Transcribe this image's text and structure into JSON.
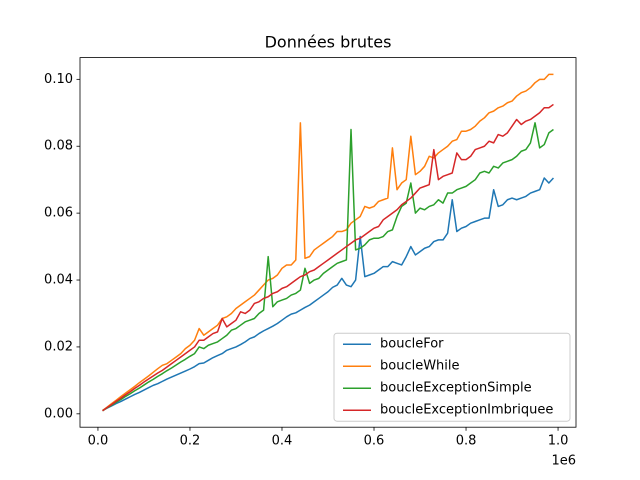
{
  "chart_data": {
    "type": "line",
    "title": "Données brutes",
    "x": [
      10000,
      20000,
      30000,
      40000,
      50000,
      60000,
      70000,
      80000,
      90000,
      100000,
      110000,
      120000,
      130000,
      140000,
      150000,
      160000,
      170000,
      180000,
      190000,
      200000,
      210000,
      220000,
      230000,
      240000,
      250000,
      260000,
      270000,
      280000,
      290000,
      300000,
      310000,
      320000,
      330000,
      340000,
      350000,
      360000,
      370000,
      380000,
      390000,
      400000,
      410000,
      420000,
      430000,
      440000,
      450000,
      460000,
      470000,
      480000,
      490000,
      500000,
      510000,
      520000,
      530000,
      540000,
      550000,
      560000,
      570000,
      580000,
      590000,
      600000,
      610000,
      620000,
      630000,
      640000,
      650000,
      660000,
      670000,
      680000,
      690000,
      700000,
      710000,
      720000,
      730000,
      740000,
      750000,
      760000,
      770000,
      780000,
      790000,
      800000,
      810000,
      820000,
      830000,
      840000,
      850000,
      860000,
      870000,
      880000,
      890000,
      900000,
      910000,
      920000,
      930000,
      940000,
      950000,
      960000,
      970000,
      980000,
      990000
    ],
    "x_offset_label": "1e6",
    "xlim": [
      -39000,
      1039000
    ],
    "xticks": [
      {
        "value": 0,
        "label": "0.0"
      },
      {
        "value": 200000,
        "label": "0.2"
      },
      {
        "value": 400000,
        "label": "0.4"
      },
      {
        "value": 600000,
        "label": "0.6"
      },
      {
        "value": 800000,
        "label": "0.8"
      },
      {
        "value": 1000000,
        "label": "1.0"
      }
    ],
    "ylim": [
      -0.004,
      0.1065
    ],
    "yticks": [
      {
        "value": 0,
        "label": "0.00"
      },
      {
        "value": 0.02,
        "label": "0.02"
      },
      {
        "value": 0.04,
        "label": "0.04"
      },
      {
        "value": 0.06,
        "label": "0.06"
      },
      {
        "value": 0.08,
        "label": "0.08"
      },
      {
        "value": 0.1,
        "label": "0.10"
      }
    ],
    "legend": "lower right",
    "series": [
      {
        "name": "boucleFor",
        "color": "#1f77b4",
        "values": [
          0.001,
          0.0017,
          0.0024,
          0.0031,
          0.0037,
          0.0044,
          0.0051,
          0.0058,
          0.0064,
          0.0071,
          0.0078,
          0.0085,
          0.009,
          0.0097,
          0.0104,
          0.011,
          0.0116,
          0.0122,
          0.0128,
          0.0134,
          0.0141,
          0.015,
          0.0152,
          0.016,
          0.0168,
          0.0174,
          0.018,
          0.019,
          0.0195,
          0.02,
          0.0207,
          0.0215,
          0.0225,
          0.023,
          0.024,
          0.0248,
          0.0255,
          0.0262,
          0.027,
          0.028,
          0.029,
          0.0298,
          0.0302,
          0.031,
          0.0318,
          0.0325,
          0.0335,
          0.0345,
          0.0355,
          0.0365,
          0.0378,
          0.0385,
          0.0405,
          0.0385,
          0.038,
          0.04,
          0.053,
          0.041,
          0.0415,
          0.042,
          0.043,
          0.044,
          0.044,
          0.0455,
          0.045,
          0.0445,
          0.047,
          0.05,
          0.0475,
          0.0485,
          0.0495,
          0.05,
          0.0515,
          0.052,
          0.052,
          0.054,
          0.064,
          0.0545,
          0.0555,
          0.056,
          0.057,
          0.0575,
          0.058,
          0.0585,
          0.0585,
          0.067,
          0.062,
          0.0625,
          0.064,
          0.0645,
          0.064,
          0.0645,
          0.065,
          0.066,
          0.0665,
          0.067,
          0.0705,
          0.069,
          0.0705
        ]
      },
      {
        "name": "boucleWhile",
        "color": "#ff7f0e",
        "values": [
          0.001,
          0.002,
          0.0031,
          0.0041,
          0.0052,
          0.0062,
          0.0072,
          0.0082,
          0.0093,
          0.0103,
          0.0113,
          0.0124,
          0.0135,
          0.0145,
          0.015,
          0.016,
          0.017,
          0.018,
          0.0195,
          0.0205,
          0.022,
          0.0255,
          0.0235,
          0.0245,
          0.0255,
          0.0265,
          0.0285,
          0.029,
          0.03,
          0.0315,
          0.0325,
          0.0335,
          0.0345,
          0.0355,
          0.037,
          0.0385,
          0.04,
          0.0405,
          0.0415,
          0.0435,
          0.0445,
          0.0445,
          0.046,
          0.087,
          0.0465,
          0.047,
          0.049,
          0.05,
          0.051,
          0.052,
          0.053,
          0.0545,
          0.0545,
          0.055,
          0.057,
          0.058,
          0.059,
          0.062,
          0.0615,
          0.062,
          0.0635,
          0.064,
          0.0645,
          0.0795,
          0.067,
          0.069,
          0.07,
          0.083,
          0.0715,
          0.0725,
          0.074,
          0.077,
          0.0765,
          0.078,
          0.079,
          0.08,
          0.0815,
          0.082,
          0.0845,
          0.0845,
          0.085,
          0.086,
          0.0875,
          0.0885,
          0.09,
          0.0905,
          0.0915,
          0.092,
          0.093,
          0.0935,
          0.095,
          0.096,
          0.0965,
          0.0975,
          0.099,
          0.1,
          0.1,
          0.1015,
          0.1015
        ]
      },
      {
        "name": "boucleExceptionSimple",
        "color": "#2ca02c",
        "values": [
          0.0009,
          0.0018,
          0.0026,
          0.0035,
          0.0043,
          0.0052,
          0.006,
          0.0069,
          0.0077,
          0.0086,
          0.0095,
          0.0103,
          0.0112,
          0.012,
          0.0129,
          0.0137,
          0.0146,
          0.0155,
          0.0163,
          0.0172,
          0.018,
          0.02,
          0.0195,
          0.0205,
          0.021,
          0.0215,
          0.0225,
          0.0235,
          0.025,
          0.0255,
          0.0265,
          0.0275,
          0.028,
          0.0285,
          0.03,
          0.031,
          0.047,
          0.032,
          0.0335,
          0.034,
          0.0345,
          0.0355,
          0.036,
          0.037,
          0.0435,
          0.039,
          0.04,
          0.0405,
          0.042,
          0.043,
          0.044,
          0.045,
          0.0455,
          0.046,
          0.085,
          0.049,
          0.0495,
          0.0505,
          0.052,
          0.0525,
          0.0525,
          0.053,
          0.0545,
          0.055,
          0.059,
          0.062,
          0.063,
          0.069,
          0.06,
          0.0615,
          0.061,
          0.062,
          0.0625,
          0.064,
          0.063,
          0.066,
          0.066,
          0.067,
          0.0675,
          0.068,
          0.069,
          0.07,
          0.072,
          0.0725,
          0.072,
          0.074,
          0.0735,
          0.075,
          0.0755,
          0.076,
          0.077,
          0.0785,
          0.079,
          0.081,
          0.087,
          0.0795,
          0.0805,
          0.084,
          0.085
        ]
      },
      {
        "name": "boucleExceptionImbriquee",
        "color": "#d62728",
        "values": [
          0.0009,
          0.0019,
          0.0028,
          0.0038,
          0.0047,
          0.0057,
          0.0066,
          0.0076,
          0.0085,
          0.0095,
          0.0104,
          0.0113,
          0.0122,
          0.013,
          0.014,
          0.015,
          0.016,
          0.017,
          0.018,
          0.019,
          0.02,
          0.022,
          0.022,
          0.023,
          0.024,
          0.0245,
          0.0285,
          0.026,
          0.027,
          0.028,
          0.0305,
          0.03,
          0.031,
          0.033,
          0.0335,
          0.0345,
          0.035,
          0.036,
          0.0365,
          0.0375,
          0.038,
          0.039,
          0.04,
          0.041,
          0.0415,
          0.0425,
          0.043,
          0.044,
          0.045,
          0.046,
          0.047,
          0.048,
          0.049,
          0.05,
          0.051,
          0.052,
          0.0525,
          0.0535,
          0.0545,
          0.0555,
          0.056,
          0.058,
          0.059,
          0.06,
          0.061,
          0.0625,
          0.0635,
          0.0645,
          0.066,
          0.0675,
          0.068,
          0.0685,
          0.079,
          0.07,
          0.071,
          0.0715,
          0.072,
          0.078,
          0.076,
          0.076,
          0.077,
          0.079,
          0.0795,
          0.08,
          0.0815,
          0.081,
          0.0835,
          0.083,
          0.084,
          0.086,
          0.088,
          0.0865,
          0.0875,
          0.088,
          0.089,
          0.09,
          0.0915,
          0.0915,
          0.0925
        ]
      }
    ]
  }
}
